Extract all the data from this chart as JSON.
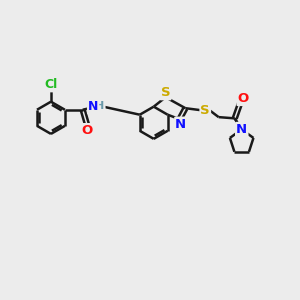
{
  "bg_color": "#ececec",
  "bond_color": "#1a1a1a",
  "bond_width": 1.8,
  "dbo": 0.07,
  "atom_colors": {
    "H": "#6a9aaa",
    "N": "#1010ff",
    "O": "#ff1010",
    "S": "#ccaa00",
    "Cl": "#22bb22"
  },
  "figsize": [
    3.0,
    3.0
  ],
  "dpi": 100,
  "xlim": [
    0,
    12
  ],
  "ylim": [
    0,
    12
  ]
}
